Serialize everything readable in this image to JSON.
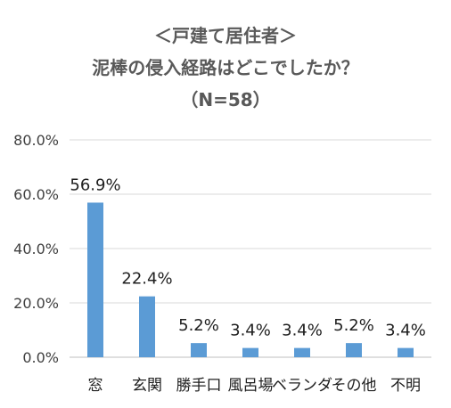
{
  "chart_data": {
    "type": "bar",
    "title_lines": [
      "＜戸建て居住者＞",
      "泥棒の侵入経路はどこでしたか？",
      "（N=58）"
    ],
    "categories": [
      "窓",
      "玄関",
      "勝手口",
      "風呂場",
      "ベランダ",
      "その他",
      "不明"
    ],
    "values": [
      56.9,
      22.4,
      5.2,
      3.4,
      3.4,
      5.2,
      3.4
    ],
    "data_labels": [
      "56.9%",
      "22.4%",
      "5.2%",
      "3.4%",
      "3.4%",
      "5.2%",
      "3.4%"
    ],
    "y_ticks": [
      "0.0%",
      "20.0%",
      "40.0%",
      "60.0%",
      "80.0%"
    ],
    "ylim": [
      0,
      80
    ],
    "grid": true,
    "bar_color": "#5b9bd5",
    "grid_color": "#d9d9d9"
  }
}
